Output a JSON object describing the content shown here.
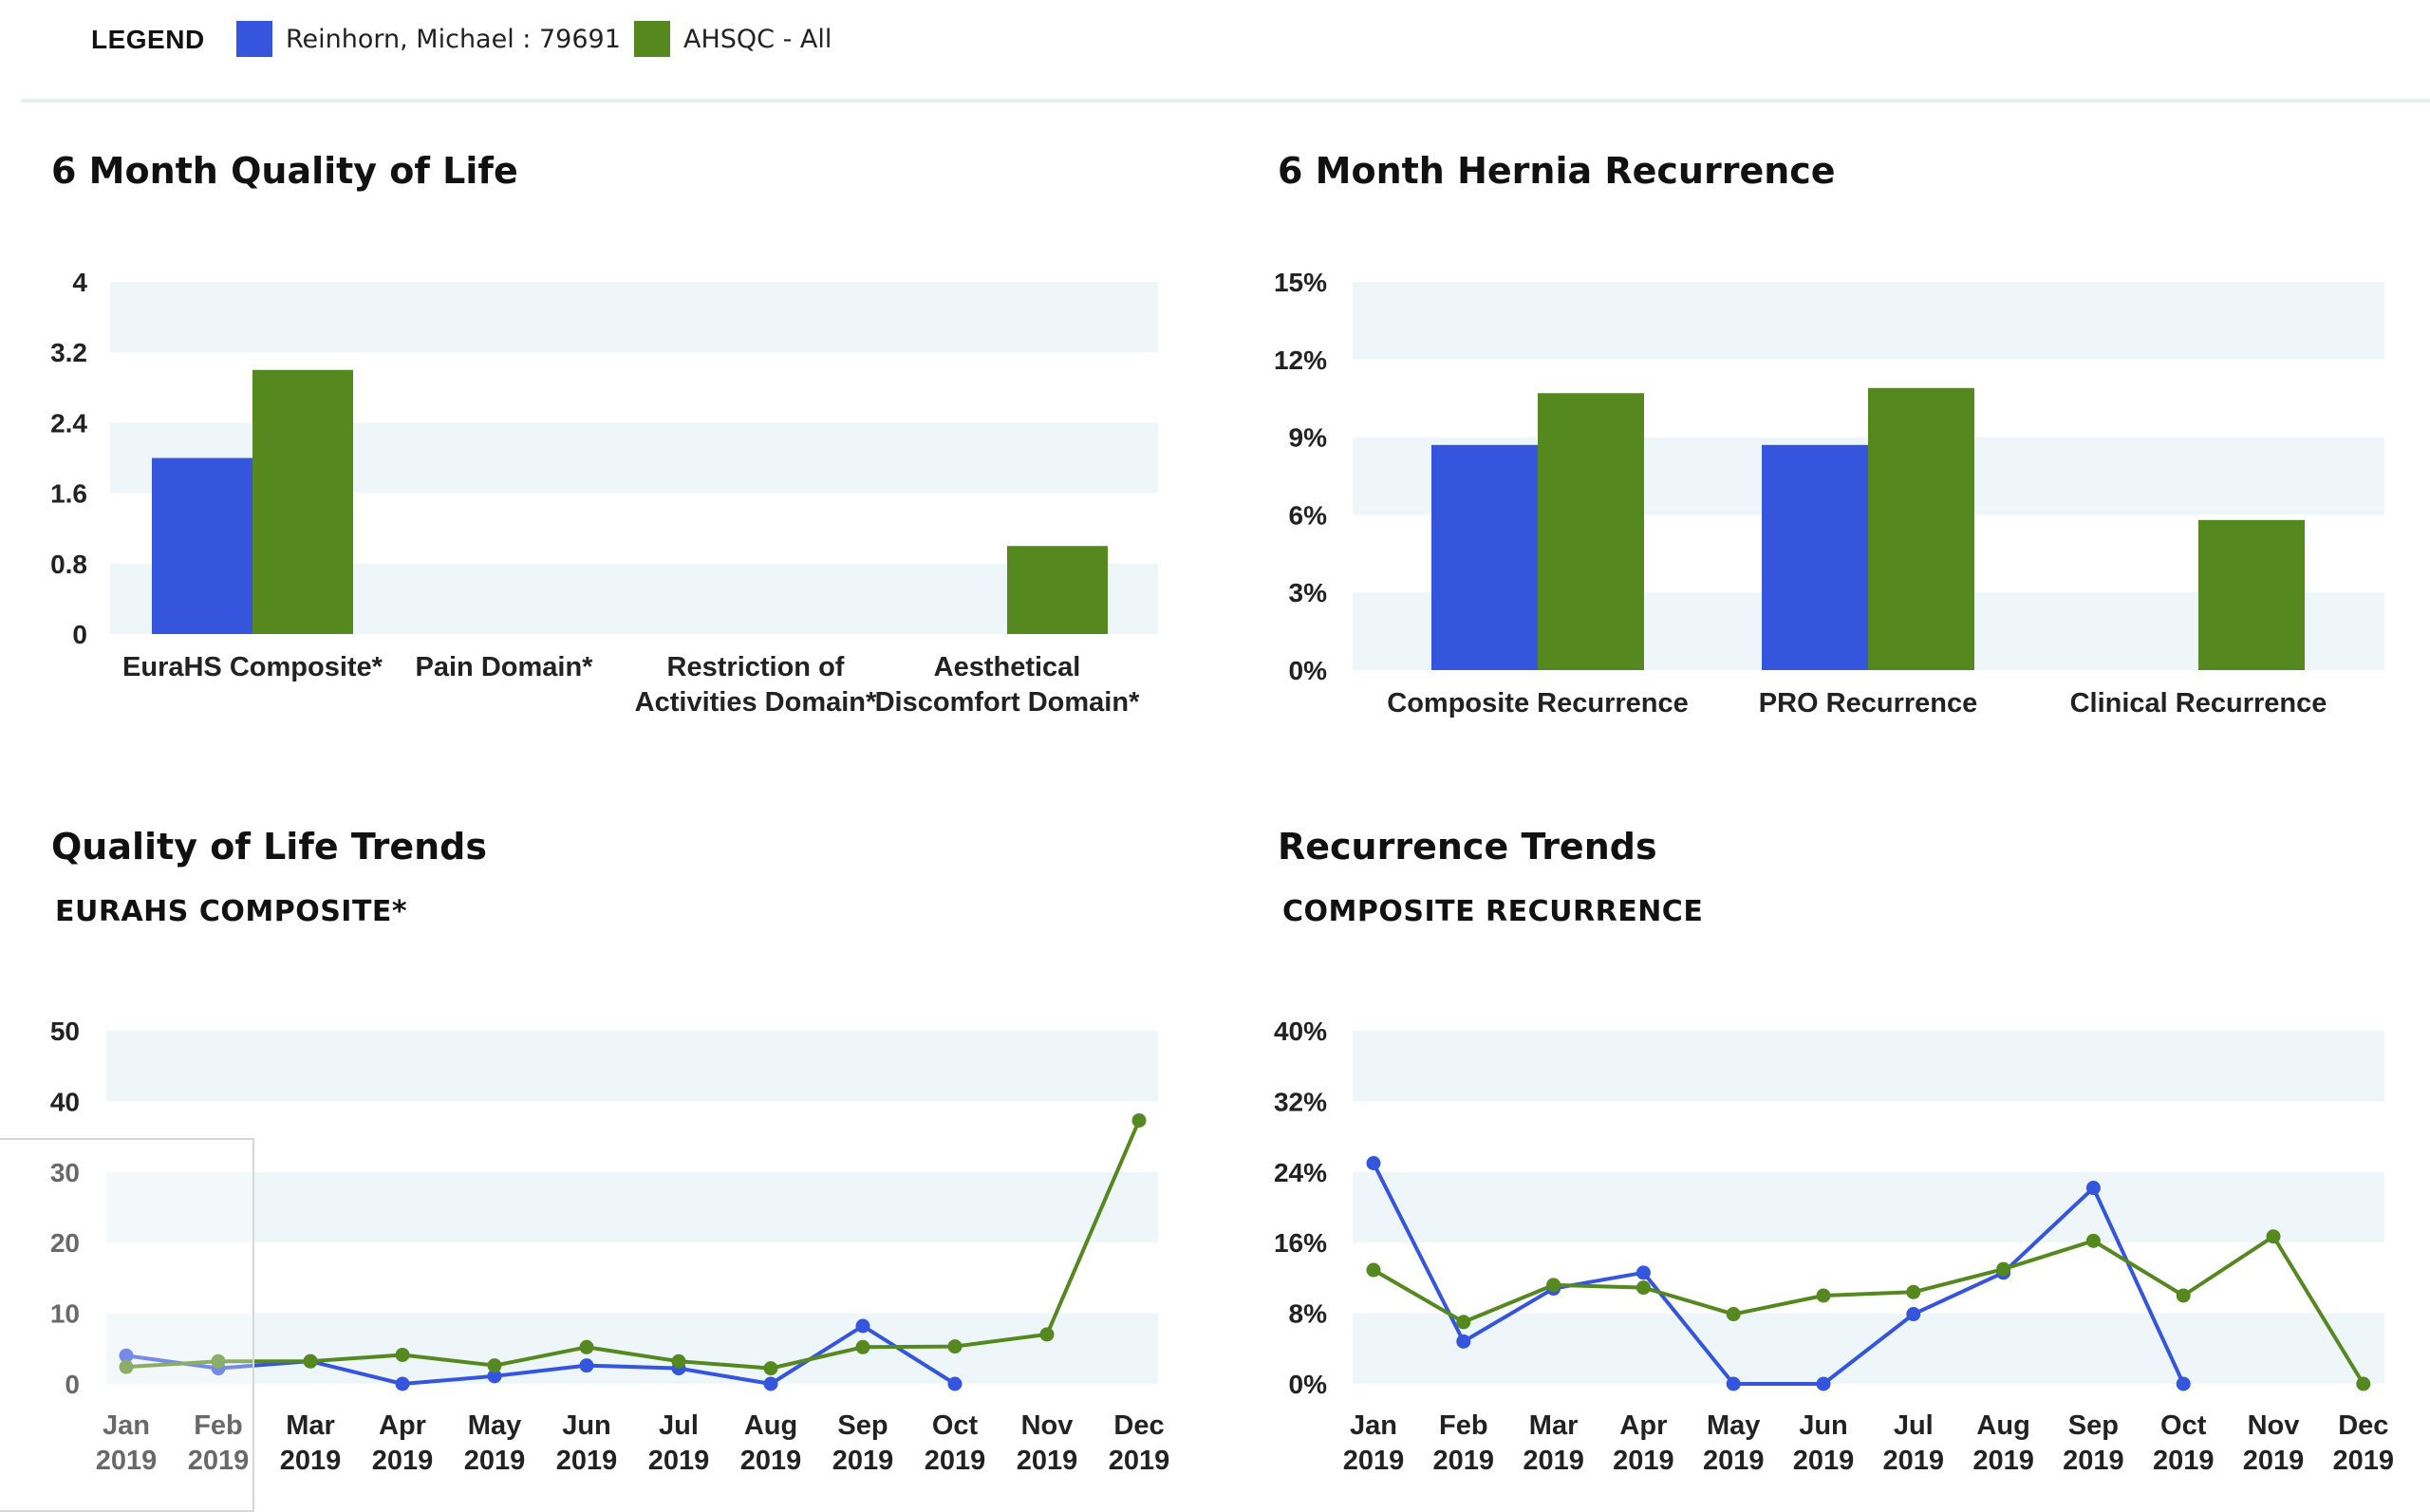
{
  "legend": {
    "title": "LEGEND",
    "items": [
      {
        "label": "Reinhorn, Michael : 79691",
        "color": "#3555dd"
      },
      {
        "label": "AHSQC - All",
        "color": "#55881e"
      }
    ]
  },
  "colors": {
    "band": "#eef6fa",
    "surgeon": "#3555dd",
    "ahsqc": "#55881e"
  },
  "sections": {
    "qol": {
      "title": "6 Month Quality of Life"
    },
    "hernia": {
      "title": "6 Month Hernia Recurrence"
    },
    "qol_trends": {
      "title": "Quality of Life Trends",
      "subtitle": "EURAHS COMPOSITE*"
    },
    "rec_trends": {
      "title": "Recurrence Trends",
      "subtitle": "COMPOSITE RECURRENCE"
    }
  },
  "chart_data": [
    {
      "id": "qol",
      "type": "bar",
      "title": "6 Month Quality of Life",
      "categories": [
        [
          "EuraHS Composite*"
        ],
        [
          "Pain Domain*"
        ],
        [
          "Restriction of",
          "Activities Domain*"
        ],
        [
          "Aesthetical",
          "Discomfort Domain*"
        ]
      ],
      "yticks": [
        "0",
        "0.8",
        "1.6",
        "2.4",
        "3.2",
        "4"
      ],
      "ylim": [
        0,
        4
      ],
      "grid": "alternating bands",
      "series": [
        {
          "name": "Reinhorn, Michael : 79691",
          "values": [
            2.0,
            null,
            null,
            null
          ]
        },
        {
          "name": "AHSQC - All",
          "values": [
            3.0,
            null,
            null,
            1.0
          ]
        }
      ]
    },
    {
      "id": "hernia",
      "type": "bar",
      "title": "6 Month Hernia Recurrence",
      "categories": [
        [
          "Composite Recurrence"
        ],
        [
          "PRO Recurrence"
        ],
        [
          "Clinical Recurrence"
        ]
      ],
      "yticks": [
        "0%",
        "3%",
        "6%",
        "9%",
        "12%",
        "15%"
      ],
      "ylim": [
        0,
        15
      ],
      "grid": "alternating bands",
      "series": [
        {
          "name": "Reinhorn, Michael : 79691",
          "values": [
            8.7,
            8.7,
            null
          ]
        },
        {
          "name": "AHSQC - All",
          "values": [
            10.7,
            10.9,
            5.8
          ]
        }
      ]
    },
    {
      "id": "qol_trends",
      "type": "line",
      "title": "Quality of Life Trends",
      "subtitle": "EURAHS COMPOSITE*",
      "x": [
        [
          "Jan",
          "2019"
        ],
        [
          "Feb",
          "2019"
        ],
        [
          "Mar",
          "2019"
        ],
        [
          "Apr",
          "2019"
        ],
        [
          "May",
          "2019"
        ],
        [
          "Jun",
          "2019"
        ],
        [
          "Jul",
          "2019"
        ],
        [
          "Aug",
          "2019"
        ],
        [
          "Sep",
          "2019"
        ],
        [
          "Oct",
          "2019"
        ],
        [
          "Nov",
          "2019"
        ],
        [
          "Dec",
          "2019"
        ]
      ],
      "yticks": [
        "0",
        "10",
        "20",
        "30",
        "40",
        "50"
      ],
      "ylim": [
        0,
        50
      ],
      "grid": "alternating bands",
      "series": [
        {
          "name": "Reinhorn, Michael : 79691",
          "values": [
            4.0,
            2.2,
            3.2,
            0,
            1.1,
            2.6,
            2.2,
            0,
            8.2,
            0,
            null,
            null
          ]
        },
        {
          "name": "AHSQC - All",
          "values": [
            2.4,
            3.2,
            3.2,
            4.1,
            2.6,
            5.2,
            3.2,
            2.2,
            5.2,
            5.3,
            7.0,
            37.3
          ]
        }
      ]
    },
    {
      "id": "rec_trends",
      "type": "line",
      "title": "Recurrence Trends",
      "subtitle": "COMPOSITE RECURRENCE",
      "x": [
        [
          "Jan",
          "2019"
        ],
        [
          "Feb",
          "2019"
        ],
        [
          "Mar",
          "2019"
        ],
        [
          "Apr",
          "2019"
        ],
        [
          "May",
          "2019"
        ],
        [
          "Jun",
          "2019"
        ],
        [
          "Jul",
          "2019"
        ],
        [
          "Aug",
          "2019"
        ],
        [
          "Sep",
          "2019"
        ],
        [
          "Oct",
          "2019"
        ],
        [
          "Nov",
          "2019"
        ],
        [
          "Dec",
          "2019"
        ]
      ],
      "yticks": [
        "0%",
        "8%",
        "16%",
        "24%",
        "32%",
        "40%"
      ],
      "ylim": [
        0,
        40
      ],
      "grid": "alternating bands",
      "series": [
        {
          "name": "Reinhorn, Michael : 79691",
          "values": [
            25.0,
            4.8,
            10.8,
            12.6,
            0,
            0,
            7.9,
            12.6,
            22.2,
            0,
            null,
            null
          ]
        },
        {
          "name": "AHSQC - All",
          "values": [
            12.9,
            7.0,
            11.2,
            10.9,
            7.9,
            10.0,
            10.4,
            13.0,
            16.2,
            10.0,
            16.7,
            0
          ]
        }
      ]
    }
  ]
}
